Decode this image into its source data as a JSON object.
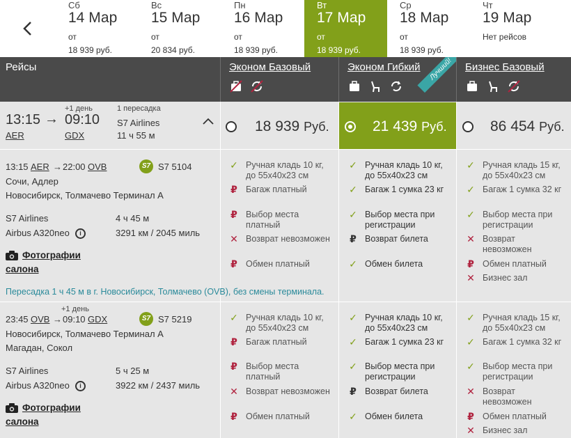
{
  "days": [
    {
      "dow": "Сб",
      "date": "14 Мар",
      "from": "от",
      "price": "18 939 руб.",
      "active": false
    },
    {
      "dow": "Вс",
      "date": "15 Мар",
      "from": "от",
      "price": "20 834 руб.",
      "active": false
    },
    {
      "dow": "Пн",
      "date": "16 Мар",
      "from": "от",
      "price": "18 939 руб.",
      "active": false
    },
    {
      "dow": "Вт",
      "date": "17 Мар",
      "from": "от",
      "price": "18 939 руб.",
      "active": true
    },
    {
      "dow": "Ср",
      "date": "18 Мар",
      "from": "от",
      "price": "18 939 руб.",
      "active": false
    },
    {
      "dow": "Чт",
      "date": "19 Мар",
      "from": "Нет рейсов",
      "price": "",
      "active": false
    }
  ],
  "header": {
    "flights": "Рейсы",
    "fares": [
      {
        "title": "Эконом Базовый"
      },
      {
        "title": "Эконом Гибкий",
        "badge": "Лучший!"
      },
      {
        "title": "Бизнес Базовый"
      }
    ]
  },
  "summary": {
    "dep_time": "13:15",
    "arr_time": "09:10",
    "next_day": "+1 день",
    "dep_code": "AER",
    "arr_code": "GDX",
    "stops": "1 пересадка",
    "airline": "S7 Airlines",
    "duration": "11 ч 55 м",
    "prices": [
      {
        "amount": "18 939",
        "currency": "Руб."
      },
      {
        "amount": "21 439",
        "currency": "Руб."
      },
      {
        "amount": "86 454",
        "currency": "Руб."
      }
    ]
  },
  "segments": [
    {
      "dep": "13:15",
      "dep_code": "AER",
      "arrow": "→",
      "arr": "22:00",
      "arr_code": "OVB",
      "next_day": "",
      "flight_no": "S7 5104",
      "from_city": "Сочи, Адлер",
      "to_city": "Новосибирск, Толмачево Терминал А",
      "airline": "S7 Airlines",
      "aircraft": "Airbus A320neo",
      "duration": "4 ч 45 м",
      "distance": "3291 км / 2045 миль",
      "photos": "Фотографии салона",
      "fares": [
        [
          {
            "icon": "ok",
            "text": "Ручная кладь 10 кг, до 55х40х23 см"
          },
          {
            "icon": "rub",
            "text": "Багаж платный"
          },
          {
            "icon": "rub",
            "text": "Выбор места платный"
          },
          {
            "icon": "no",
            "text": "Возврат невозможен"
          },
          {
            "icon": "rub",
            "text": "Обмен платный"
          }
        ],
        [
          {
            "icon": "ok",
            "text": "Ручная кладь 10 кг, до 55х40х23 см"
          },
          {
            "icon": "ok",
            "text": "Багаж 1 сумка 23 кг"
          },
          {
            "icon": "ok",
            "text": "Выбор места при регистрации"
          },
          {
            "icon": "rub",
            "text": "Возврат билета"
          },
          {
            "icon": "ok",
            "text": "Обмен билета"
          }
        ],
        [
          {
            "icon": "ok",
            "text": "Ручная кладь 15 кг, до 55х40х23 см"
          },
          {
            "icon": "ok",
            "text": "Багаж 1 сумка 32 кг"
          },
          {
            "icon": "ok",
            "text": "Выбор места при регистрации"
          },
          {
            "icon": "no",
            "text": "Возврат невозможен"
          },
          {
            "icon": "rub",
            "text": "Обмен платный"
          },
          {
            "icon": "no",
            "text": "Бизнес зал"
          }
        ]
      ]
    },
    {
      "dep": "23:45",
      "dep_code": "OVB",
      "arrow": "→",
      "arr": "09:10",
      "arr_code": "GDX",
      "next_day": "+1 день",
      "flight_no": "S7 5219",
      "from_city": "Новосибирск, Толмачево Терминал А",
      "to_city": "Магадан, Сокол",
      "airline": "S7 Airlines",
      "aircraft": "Airbus A320neo",
      "duration": "5 ч 25 м",
      "distance": "3922 км / 2437 миль",
      "photos": "Фотографии салона",
      "fares": [
        [
          {
            "icon": "ok",
            "text": "Ручная кладь 10 кг, до 55х40х23 см"
          },
          {
            "icon": "rub",
            "text": "Багаж платный"
          },
          {
            "icon": "rub",
            "text": "Выбор места платный"
          },
          {
            "icon": "no",
            "text": "Возврат невозможен"
          },
          {
            "icon": "rub",
            "text": "Обмен платный"
          }
        ],
        [
          {
            "icon": "ok",
            "text": "Ручная кладь 10 кг, до 55х40х23 см"
          },
          {
            "icon": "ok",
            "text": "Багаж 1 сумка 23 кг"
          },
          {
            "icon": "ok",
            "text": "Выбор места при регистрации"
          },
          {
            "icon": "rub",
            "text": "Возврат билета"
          },
          {
            "icon": "ok",
            "text": "Обмен билета"
          }
        ],
        [
          {
            "icon": "ok",
            "text": "Ручная кладь 15 кг, до 55х40х23 см"
          },
          {
            "icon": "ok",
            "text": "Багаж 1 сумка 32 кг"
          },
          {
            "icon": "ok",
            "text": "Выбор места при регистрации"
          },
          {
            "icon": "no",
            "text": "Возврат невозможен"
          },
          {
            "icon": "rub",
            "text": "Обмен платный"
          },
          {
            "icon": "no",
            "text": "Бизнес зал"
          }
        ]
      ]
    }
  ],
  "transfer": "Пересадка 1 ч 45 м в г. Новосибирск, Толмачево (OVB), без смены терминала.",
  "colors": {
    "accent": "#82a01a",
    "header": "#4a4a4a",
    "badge": "#3aa6a6"
  }
}
